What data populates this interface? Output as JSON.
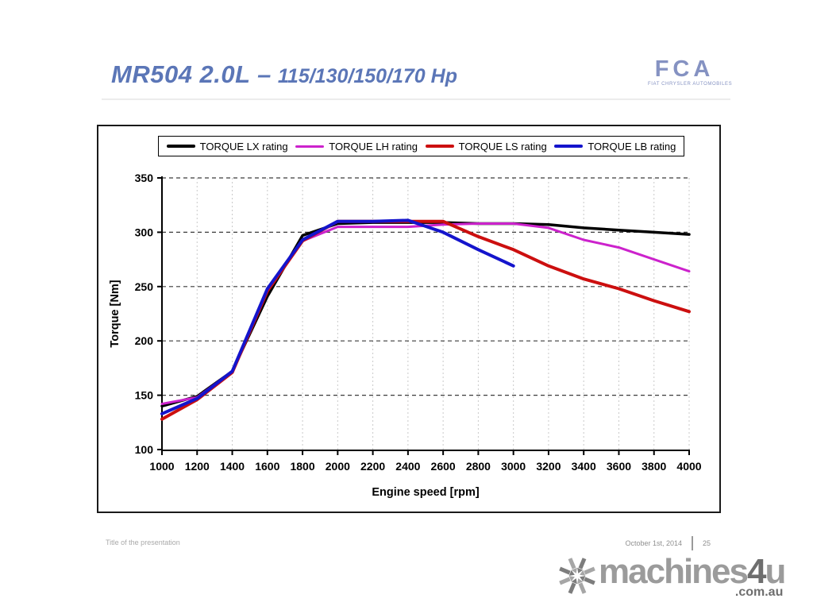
{
  "header": {
    "title_main": "MR504  2.0L –",
    "title_sub": "115/130/150/170 Hp",
    "logo_text": "FCA",
    "logo_subtext": "FIAT CHRYSLER AUTOMOBILES"
  },
  "chart_data": {
    "type": "line",
    "x": [
      1000,
      1200,
      1400,
      1600,
      1800,
      2000,
      2200,
      2400,
      2600,
      2800,
      3000,
      3200,
      3400,
      3600,
      3800,
      4000
    ],
    "xlabel": "Engine speed [rpm]",
    "ylabel": "Torque [Nm]",
    "xlim": [
      1000,
      4000
    ],
    "ylim": [
      100,
      350
    ],
    "xticks": [
      1000,
      1200,
      1400,
      1600,
      1800,
      2000,
      2200,
      2400,
      2600,
      2800,
      3000,
      3200,
      3400,
      3600,
      3800,
      4000
    ],
    "yticks": [
      100,
      150,
      200,
      250,
      300,
      350
    ],
    "grid": {
      "horizontal": "dashed-dark",
      "vertical": "dashed-light"
    },
    "legend_position": "top",
    "series": [
      {
        "name": "TORQUE LX rating",
        "color": "#000000",
        "width": 3.5,
        "values": [
          140,
          149,
          172,
          241,
          297,
          308,
          309,
          309,
          309,
          308,
          308,
          307,
          304,
          302,
          300,
          298
        ]
      },
      {
        "name": "TORQUE LH rating",
        "color": "#cc22cc",
        "width": 3,
        "values": [
          142,
          148,
          172,
          246,
          292,
          305,
          305,
          305,
          307,
          308,
          308,
          304,
          293,
          286,
          275,
          264
        ]
      },
      {
        "name": "TORQUE LS rating",
        "color": "#cc0f0f",
        "width": 4,
        "values": [
          128,
          146,
          171,
          246,
          292,
          310,
          310,
          310,
          310,
          296,
          284,
          269,
          257,
          248,
          237,
          227
        ]
      },
      {
        "name": "TORQUE LB rating",
        "color": "#1414cc",
        "width": 4,
        "values": [
          133,
          147,
          172,
          248,
          293,
          310,
          310,
          311,
          300,
          284,
          269
        ]
      }
    ]
  },
  "footer": {
    "left": "Title of the presentation",
    "date": "October 1st, 2014",
    "page": "25"
  },
  "watermark": {
    "brand": "machines",
    "brand_num": "4",
    "brand_u": "u",
    "domain": ".com.au"
  }
}
